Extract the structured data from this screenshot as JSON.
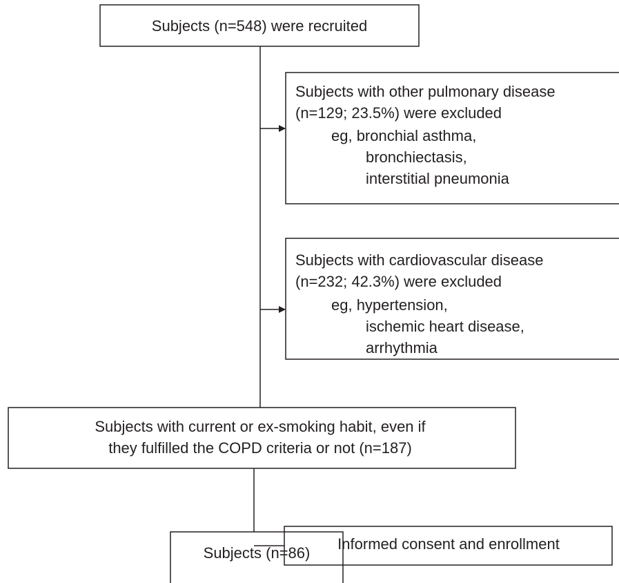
{
  "nodes": [
    {
      "lines": [
        "Subjects (n=548) were recruited"
      ]
    },
    {
      "lines": [
        "Subjects with other pulmonary disease",
        "(n=129; 23.5%) were excluded",
        "eg, bronchial asthma,",
        "bronchiectasis,",
        "interstitial pneumonia"
      ]
    },
    {
      "lines": [
        "Subjects with cardiovascular disease",
        "(n=232; 42.3%) were excluded",
        "eg, hypertension,",
        "ischemic heart disease,",
        "arrhythmia"
      ]
    },
    {
      "lines": [
        "Subjects with current or ex-smoking habit, even if",
        "they fulfilled the COPD criteria or not (n=187)"
      ]
    },
    {
      "lines": [
        "Informed consent and enrollment"
      ]
    },
    {
      "lines": [
        "Subjects (n=86)"
      ]
    }
  ]
}
